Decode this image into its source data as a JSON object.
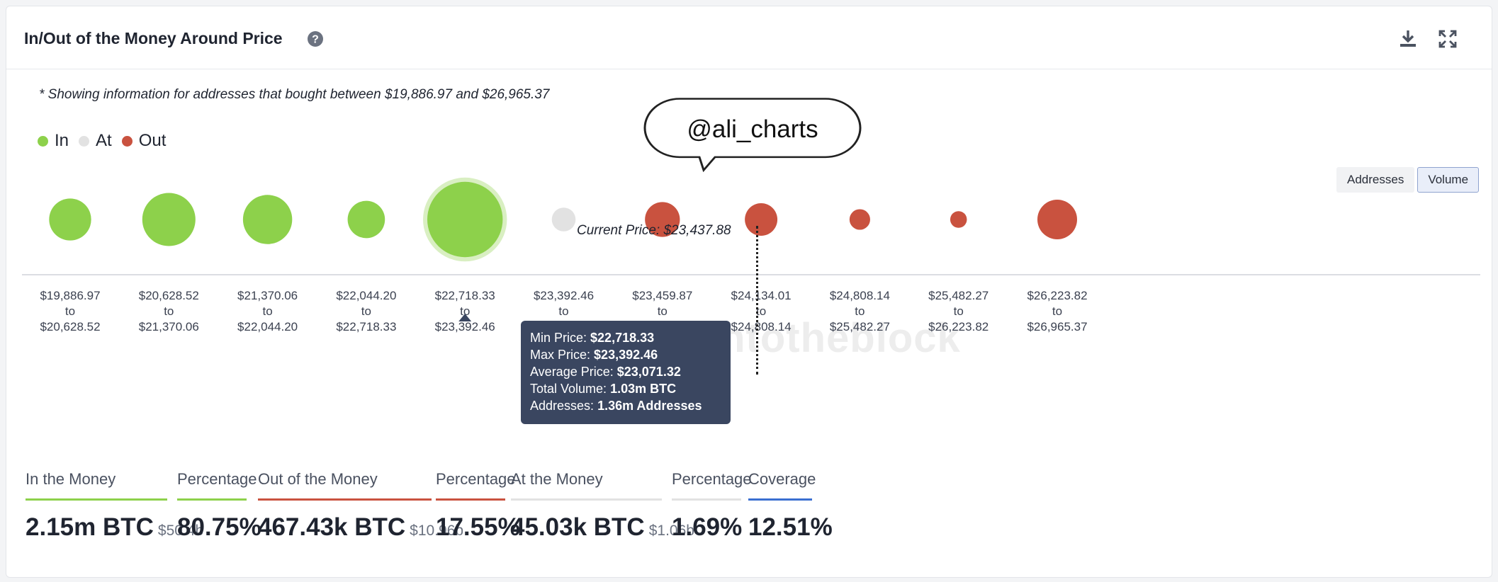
{
  "header": {
    "title": "In/Out of the Money Around Price",
    "help_icon": "question-circle-icon",
    "download_icon": "download-icon",
    "expand_icon": "expand-icon"
  },
  "note": "* Showing information for addresses that bought between $19,886.97 and $26,965.37",
  "legend": [
    {
      "label": "In",
      "color": "#8dd14b"
    },
    {
      "label": "At",
      "color": "#e2e2e2"
    },
    {
      "label": "Out",
      "color": "#c9523f"
    }
  ],
  "annotation_bubble": "@ali_charts",
  "toggle": {
    "addresses": "Addresses",
    "volume": "Volume",
    "active": "Volume"
  },
  "current_price_label": "Current Price: $23,437.88",
  "watermark": "intotheblock",
  "tooltip": {
    "min_label": "Min Price:",
    "min_value": "$22,718.33",
    "max_label": "Max Price:",
    "max_value": "$23,392.46",
    "avg_label": "Average Price:",
    "avg_value": "$23,071.32",
    "vol_label": "Total Volume:",
    "vol_value": "1.03m BTC",
    "addr_label": "Addresses:",
    "addr_value": "1.36m Addresses"
  },
  "chart_data": {
    "type": "bubble",
    "title": "In/Out of the Money Around Price",
    "size_measure": "Volume",
    "current_price": 23437.88,
    "categories": [
      {
        "from": "$19,886.97",
        "to": "$20,628.52",
        "status": "In",
        "relative_size": 0.53
      },
      {
        "from": "$20,628.52",
        "to": "$21,370.06",
        "status": "In",
        "relative_size": 0.67
      },
      {
        "from": "$21,370.06",
        "to": "$22,044.20",
        "status": "In",
        "relative_size": 0.62
      },
      {
        "from": "$22,044.20",
        "to": "$22,718.33",
        "status": "In",
        "relative_size": 0.47
      },
      {
        "from": "$22,718.33",
        "to": "$23,392.46",
        "status": "In",
        "relative_size": 0.95,
        "highlighted": true
      },
      {
        "from": "$23,392.46",
        "to": "$23,459.87",
        "status": "At",
        "relative_size": 0.3
      },
      {
        "from": "$23,459.87",
        "to": "$24,134.01",
        "status": "Out",
        "relative_size": 0.44
      },
      {
        "from": "$24,134.01",
        "to": "$24,808.14",
        "status": "Out",
        "relative_size": 0.41
      },
      {
        "from": "$24,808.14",
        "to": "$25,482.27",
        "status": "Out",
        "relative_size": 0.26
      },
      {
        "from": "$25,482.27",
        "to": "$26,223.82",
        "status": "Out",
        "relative_size": 0.21
      },
      {
        "from": "$26,223.82",
        "to": "$26,965.37",
        "status": "Out",
        "relative_size": 0.5
      }
    ],
    "connector": "to"
  },
  "metrics": [
    {
      "label": "In the Money",
      "value": "2.15m BTC",
      "sub": "$50.4b",
      "color": "#8dd14b"
    },
    {
      "label": "Percentage",
      "value": "80.75%",
      "sub": "",
      "color": "#8dd14b"
    },
    {
      "label": "Out of the Money",
      "value": "467.43k BTC",
      "sub": "$10.96b",
      "color": "#c9523f"
    },
    {
      "label": "Percentage",
      "value": "17.55%",
      "sub": "",
      "color": "#c9523f"
    },
    {
      "label": "At the Money",
      "value": "45.03k BTC",
      "sub": "$1.06b",
      "color": "#e2e2e2"
    },
    {
      "label": "Percentage",
      "value": "1.69%",
      "sub": "",
      "color": "#e2e2e2"
    },
    {
      "label": "Coverage",
      "value": "12.51%",
      "sub": "",
      "color": "#3b6fd1"
    }
  ]
}
